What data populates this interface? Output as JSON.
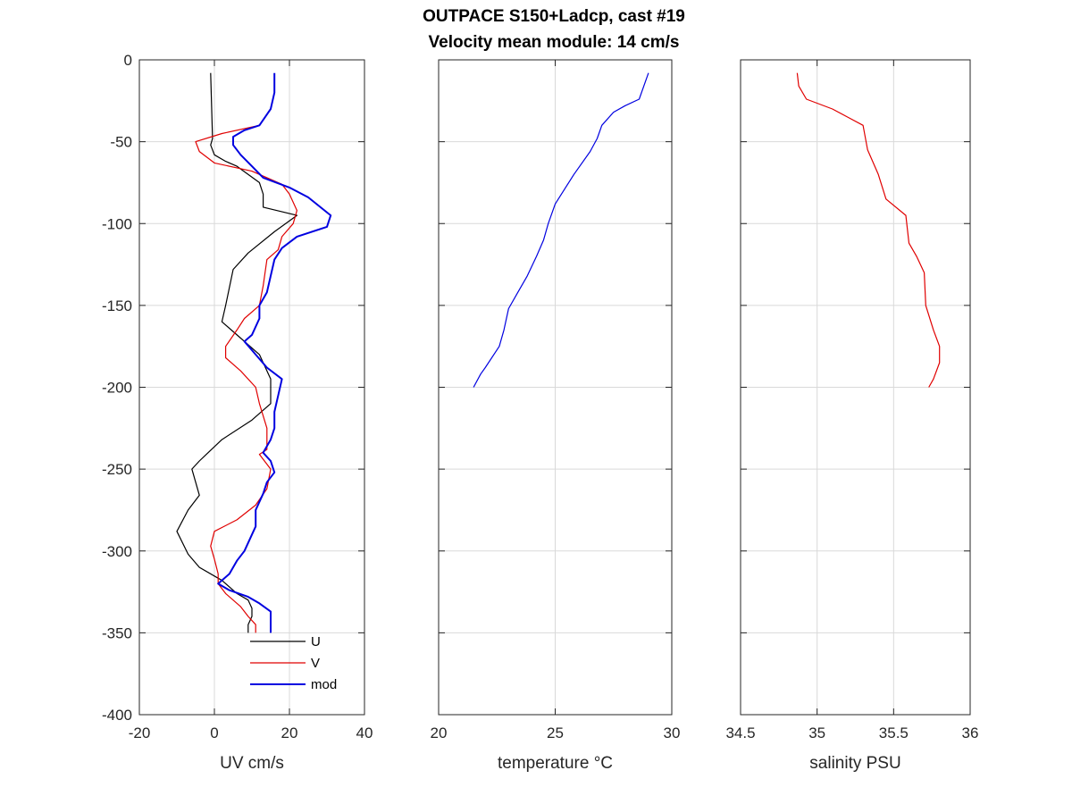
{
  "title": [
    "OUTPACE S150+Ladcp, cast #19",
    "Velocity mean module:  14 cm/s"
  ],
  "chart_data": [
    {
      "type": "line",
      "xlabel": "UV cm/s",
      "ylabel": "",
      "xlim": [
        -20,
        40
      ],
      "ylim": [
        -400,
        0
      ],
      "xticks": [
        -20,
        0,
        20,
        40
      ],
      "yticks": [
        0,
        -50,
        -100,
        -150,
        -200,
        -250,
        -300,
        -350,
        -400
      ],
      "grid": true,
      "legend_position": "bottom-right",
      "series": [
        {
          "name": "U",
          "color": "#000000",
          "width": 1.2,
          "points": [
            [
              -1,
              -8
            ],
            [
              -0.5,
              -48
            ],
            [
              -1,
              -52
            ],
            [
              0,
              -58
            ],
            [
              3,
              -62
            ],
            [
              6,
              -65
            ],
            [
              12,
              -75
            ],
            [
              13,
              -82
            ],
            [
              13,
              -90
            ],
            [
              22,
              -95
            ],
            [
              16,
              -105
            ],
            [
              9,
              -118
            ],
            [
              5,
              -128
            ],
            [
              3,
              -150
            ],
            [
              2,
              -160
            ],
            [
              7,
              -170
            ],
            [
              12,
              -180
            ],
            [
              15,
              -195
            ],
            [
              15,
              -210
            ],
            [
              10,
              -220
            ],
            [
              2,
              -232
            ],
            [
              -4,
              -245
            ],
            [
              -6,
              -250
            ],
            [
              -4,
              -266
            ],
            [
              -7,
              -275
            ],
            [
              -10,
              -288
            ],
            [
              -7,
              -302
            ],
            [
              -4,
              -310
            ],
            [
              2,
              -318
            ],
            [
              6,
              -326
            ],
            [
              9,
              -330
            ],
            [
              10,
              -335
            ],
            [
              10,
              -340
            ],
            [
              9,
              -345
            ],
            [
              9,
              -350
            ]
          ]
        },
        {
          "name": "V",
          "color": "#e00000",
          "width": 1.2,
          "points": [
            [
              12,
              -40
            ],
            [
              2,
              -45
            ],
            [
              -5,
              -50
            ],
            [
              -4,
              -56
            ],
            [
              0,
              -63
            ],
            [
              10,
              -68
            ],
            [
              18,
              -76
            ],
            [
              20,
              -82
            ],
            [
              22,
              -92
            ],
            [
              21,
              -100
            ],
            [
              18,
              -108
            ],
            [
              17,
              -116
            ],
            [
              14,
              -122
            ],
            [
              13,
              -138
            ],
            [
              12,
              -150
            ],
            [
              8,
              -158
            ],
            [
              6,
              -165
            ],
            [
              3,
              -175
            ],
            [
              3,
              -182
            ],
            [
              7,
              -190
            ],
            [
              11,
              -200
            ],
            [
              12,
              -210
            ],
            [
              14,
              -225
            ],
            [
              14,
              -238
            ],
            [
              12,
              -241
            ],
            [
              15,
              -250
            ],
            [
              14,
              -262
            ],
            [
              11,
              -272
            ],
            [
              6,
              -281
            ],
            [
              0,
              -288
            ],
            [
              -1,
              -297
            ],
            [
              0,
              -305
            ],
            [
              1,
              -314
            ],
            [
              1,
              -320
            ],
            [
              3,
              -326
            ],
            [
              7,
              -334
            ],
            [
              9,
              -340
            ],
            [
              11,
              -345
            ],
            [
              11,
              -350
            ]
          ]
        },
        {
          "name": "mod",
          "color": "#0000e0",
          "width": 2,
          "points": [
            [
              16,
              -8
            ],
            [
              16,
              -20
            ],
            [
              15,
              -30
            ],
            [
              12,
              -40
            ],
            [
              8,
              -43
            ],
            [
              5,
              -47
            ],
            [
              5,
              -52
            ],
            [
              7,
              -58
            ],
            [
              10,
              -65
            ],
            [
              13,
              -72
            ],
            [
              20,
              -78
            ],
            [
              25,
              -84
            ],
            [
              31,
              -95
            ],
            [
              30,
              -102
            ],
            [
              22,
              -108
            ],
            [
              18,
              -115
            ],
            [
              16,
              -122
            ],
            [
              15,
              -132
            ],
            [
              14,
              -142
            ],
            [
              12,
              -150
            ],
            [
              12,
              -158
            ],
            [
              10,
              -168
            ],
            [
              8,
              -172
            ],
            [
              11,
              -180
            ],
            [
              14,
              -188
            ],
            [
              18,
              -195
            ],
            [
              17,
              -205
            ],
            [
              16,
              -215
            ],
            [
              16,
              -225
            ],
            [
              15,
              -232
            ],
            [
              13,
              -240
            ],
            [
              15,
              -245
            ],
            [
              16,
              -252
            ],
            [
              14,
              -258
            ],
            [
              13,
              -265
            ],
            [
              11,
              -275
            ],
            [
              11,
              -285
            ],
            [
              10,
              -290
            ],
            [
              8,
              -300
            ],
            [
              6,
              -306
            ],
            [
              4,
              -314
            ],
            [
              1,
              -320
            ],
            [
              4,
              -324
            ],
            [
              9,
              -328
            ],
            [
              12,
              -332
            ],
            [
              15,
              -337
            ],
            [
              15,
              -342
            ],
            [
              15,
              -350
            ]
          ]
        }
      ]
    },
    {
      "type": "line",
      "xlabel": "temperature °C",
      "ylabel": "",
      "xlim": [
        20,
        30
      ],
      "ylim": [
        -400,
        0
      ],
      "xticks": [
        20,
        25,
        30
      ],
      "yticks": [
        0,
        -50,
        -100,
        -150,
        -200,
        -250,
        -300,
        -350,
        -400
      ],
      "grid": true,
      "series": [
        {
          "color": "#0000e0",
          "width": 1.2,
          "points": [
            [
              29,
              -8
            ],
            [
              28.8,
              -16
            ],
            [
              28.6,
              -24
            ],
            [
              28,
              -28
            ],
            [
              27.5,
              -32
            ],
            [
              27,
              -40
            ],
            [
              26.8,
              -48
            ],
            [
              26.5,
              -56
            ],
            [
              25.8,
              -70
            ],
            [
              25,
              -88
            ],
            [
              24.7,
              -100
            ],
            [
              24.5,
              -110
            ],
            [
              24.2,
              -120
            ],
            [
              23.8,
              -132
            ],
            [
              23.4,
              -142
            ],
            [
              23,
              -152
            ],
            [
              22.8,
              -165
            ],
            [
              22.6,
              -175
            ],
            [
              22,
              -188
            ],
            [
              21.8,
              -192
            ],
            [
              21.5,
              -200
            ]
          ]
        }
      ]
    },
    {
      "type": "line",
      "xlabel": "salinity PSU",
      "ylabel": "",
      "xlim": [
        34.5,
        36
      ],
      "ylim": [
        -400,
        0
      ],
      "xticks": [
        34.5,
        35,
        35.5,
        36
      ],
      "yticks": [
        0,
        -50,
        -100,
        -150,
        -200,
        -250,
        -300,
        -350,
        -400
      ],
      "grid": true,
      "series": [
        {
          "color": "#e00000",
          "width": 1.2,
          "points": [
            [
              34.87,
              -8
            ],
            [
              34.88,
              -16
            ],
            [
              34.93,
              -24
            ],
            [
              35.1,
              -30
            ],
            [
              35.2,
              -35
            ],
            [
              35.3,
              -40
            ],
            [
              35.33,
              -55
            ],
            [
              35.4,
              -70
            ],
            [
              35.45,
              -85
            ],
            [
              35.58,
              -95
            ],
            [
              35.6,
              -112
            ],
            [
              35.65,
              -120
            ],
            [
              35.7,
              -130
            ],
            [
              35.71,
              -150
            ],
            [
              35.76,
              -165
            ],
            [
              35.8,
              -175
            ],
            [
              35.8,
              -185
            ],
            [
              35.76,
              -195
            ],
            [
              35.73,
              -200
            ]
          ]
        }
      ]
    }
  ]
}
